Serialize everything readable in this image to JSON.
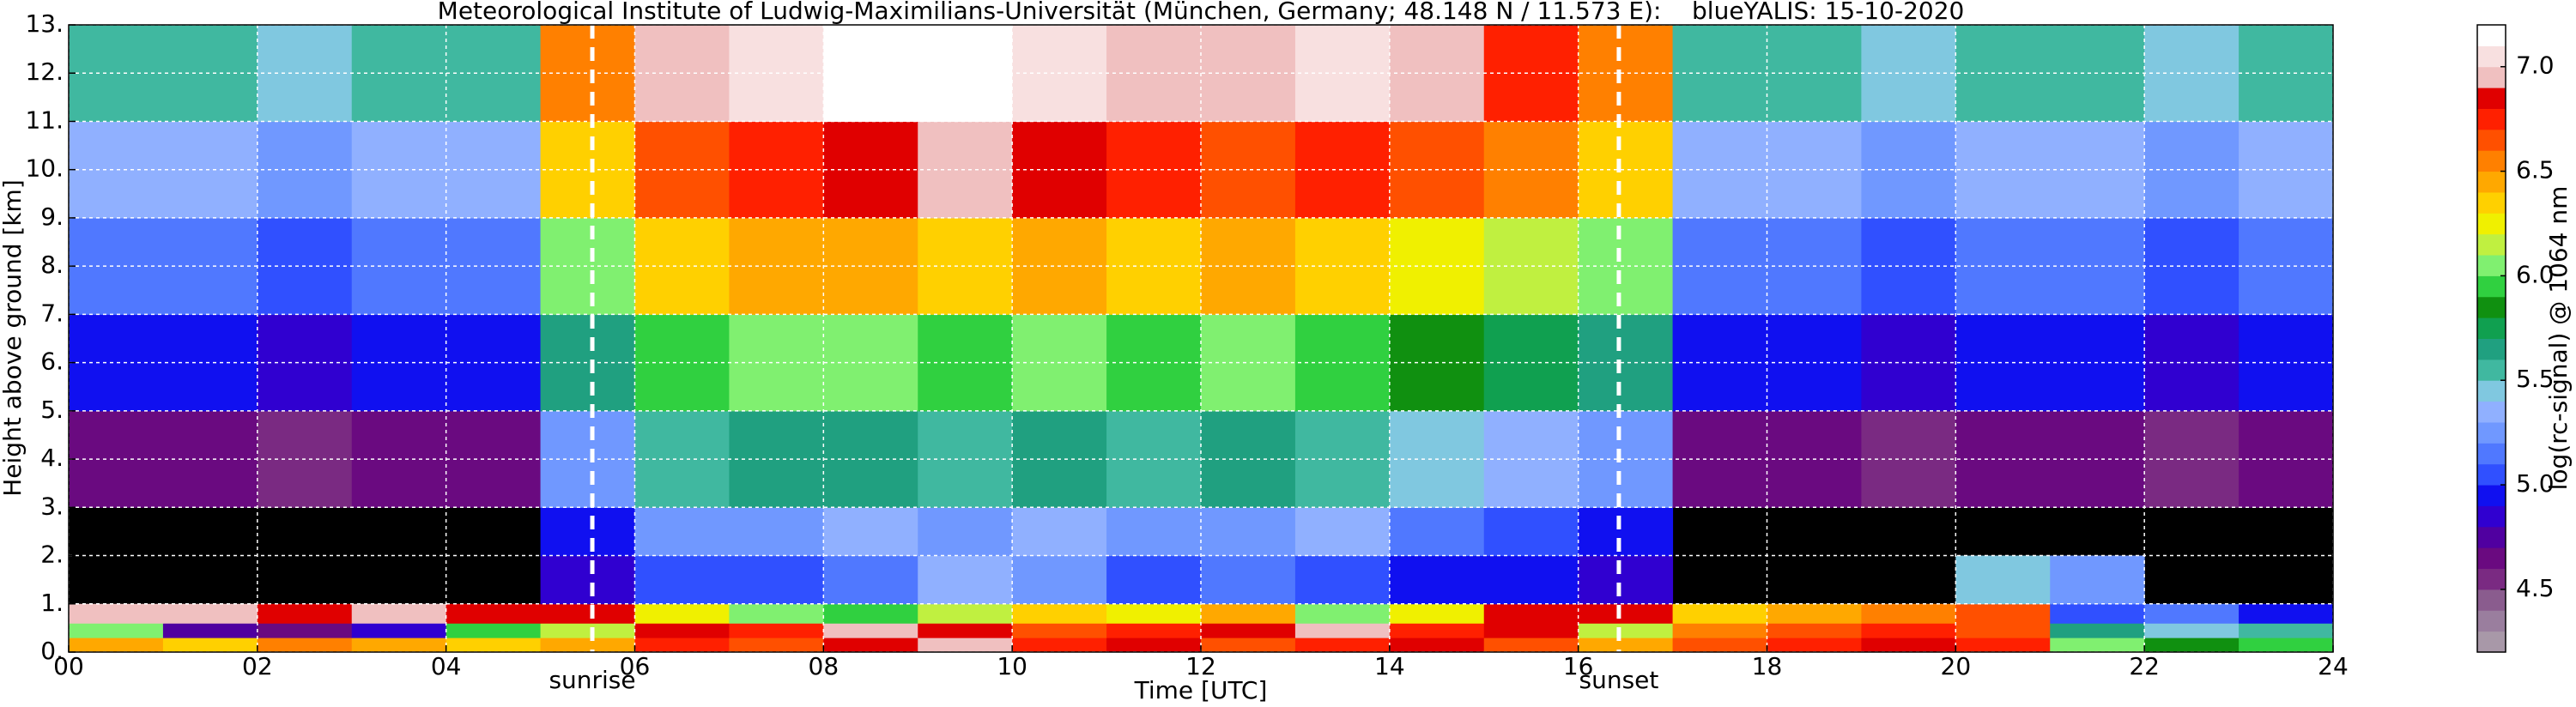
{
  "chart_data": {
    "type": "heatmap",
    "title": "Meteorological Institute of Ludwig-Maximilians-Universität (München, Germany; 48.148 N / 11.573 E):    blueYALIS: 15-10-2020",
    "x_label": "Time [UTC]",
    "y_label": "Height above ground [km]",
    "xbins": [
      0,
      1,
      2,
      3,
      4,
      5,
      6,
      7,
      8,
      9,
      10,
      11,
      12,
      13,
      14,
      15,
      16,
      17,
      18,
      19,
      20,
      21,
      22,
      23,
      24
    ],
    "ybins": [
      0,
      0.3,
      0.6,
      1,
      2,
      3,
      5,
      7,
      9,
      11,
      13
    ],
    "z": [
      [
        6.4,
        6.3,
        6.5,
        6.4,
        6.3,
        6.4,
        6.7,
        6.6,
        6.8,
        6.9,
        6.7,
        6.8,
        6.6,
        6.7,
        6.8,
        6.6,
        6.4,
        6.6,
        6.7,
        6.8,
        6.7,
        6.0,
        5.8,
        5.9
      ],
      [
        6.0,
        4.7,
        4.6,
        4.8,
        5.9,
        6.1,
        6.8,
        6.7,
        6.9,
        6.8,
        6.6,
        6.7,
        6.8,
        6.9,
        6.7,
        6.8,
        6.1,
        6.5,
        6.6,
        6.7,
        6.6,
        5.6,
        5.4,
        5.5
      ],
      [
        6.9,
        6.9,
        6.8,
        6.9,
        6.8,
        6.8,
        6.2,
        6.0,
        5.9,
        6.1,
        6.3,
        6.2,
        6.4,
        6.0,
        6.2,
        6.8,
        6.8,
        6.3,
        6.4,
        6.5,
        6.6,
        5.0,
        5.1,
        4.9
      ],
      [
        null,
        null,
        null,
        null,
        null,
        4.8,
        5.0,
        5.0,
        5.1,
        5.3,
        5.2,
        5.0,
        5.1,
        5.0,
        4.9,
        4.9,
        4.8,
        null,
        null,
        null,
        5.4,
        5.2,
        null,
        null
      ],
      [
        null,
        null,
        null,
        null,
        null,
        4.9,
        5.2,
        5.2,
        5.3,
        5.2,
        5.3,
        5.2,
        5.2,
        5.3,
        5.1,
        5.0,
        4.9,
        null,
        null,
        null,
        null,
        null,
        null,
        null
      ],
      [
        4.6,
        4.6,
        4.5,
        4.6,
        4.6,
        5.2,
        5.5,
        5.6,
        5.6,
        5.5,
        5.6,
        5.5,
        5.6,
        5.5,
        5.4,
        5.3,
        5.2,
        4.6,
        4.6,
        4.5,
        4.6,
        4.6,
        4.5,
        4.6
      ],
      [
        4.9,
        4.9,
        4.8,
        4.9,
        4.9,
        5.6,
        5.9,
        6.0,
        6.0,
        5.9,
        6.0,
        5.9,
        6.0,
        5.9,
        5.8,
        5.7,
        5.6,
        4.9,
        4.9,
        4.8,
        4.9,
        4.9,
        4.8,
        4.9
      ],
      [
        5.1,
        5.1,
        5.0,
        5.1,
        5.1,
        6.0,
        6.3,
        6.4,
        6.4,
        6.3,
        6.4,
        6.3,
        6.4,
        6.3,
        6.2,
        6.1,
        6.0,
        5.1,
        5.1,
        5.0,
        5.1,
        5.1,
        5.0,
        5.1
      ],
      [
        5.3,
        5.3,
        5.2,
        5.3,
        5.3,
        6.3,
        6.6,
        6.7,
        6.8,
        6.9,
        6.8,
        6.7,
        6.6,
        6.7,
        6.6,
        6.5,
        6.3,
        5.3,
        5.3,
        5.2,
        5.3,
        5.3,
        5.2,
        5.3
      ],
      [
        5.5,
        5.5,
        5.4,
        5.5,
        5.5,
        6.5,
        6.9,
        7.0,
        7.1,
        7.1,
        7.0,
        6.9,
        6.9,
        7.0,
        6.9,
        6.7,
        6.5,
        5.5,
        5.5,
        5.4,
        5.5,
        5.5,
        5.4,
        5.5
      ]
    ],
    "xlim": [
      0,
      24
    ],
    "ylim": [
      0,
      13
    ],
    "xticks": [
      {
        "value": 0,
        "label": "00"
      },
      {
        "value": 2,
        "label": "02"
      },
      {
        "value": 4,
        "label": "04"
      },
      {
        "value": 6,
        "label": "06"
      },
      {
        "value": 8,
        "label": "08"
      },
      {
        "value": 10,
        "label": "10"
      },
      {
        "value": 12,
        "label": "12"
      },
      {
        "value": 14,
        "label": "14"
      },
      {
        "value": 16,
        "label": "16"
      },
      {
        "value": 18,
        "label": "18"
      },
      {
        "value": 20,
        "label": "20"
      },
      {
        "value": 22,
        "label": "22"
      },
      {
        "value": 24,
        "label": "24"
      }
    ],
    "yticks": [
      {
        "value": 0,
        "label": "0."
      },
      {
        "value": 1,
        "label": "1."
      },
      {
        "value": 2,
        "label": "2."
      },
      {
        "value": 3,
        "label": "3."
      },
      {
        "value": 4,
        "label": "4."
      },
      {
        "value": 5,
        "label": "5."
      },
      {
        "value": 6,
        "label": "6."
      },
      {
        "value": 7,
        "label": "7."
      },
      {
        "value": 8,
        "label": "8."
      },
      {
        "value": 9,
        "label": "9."
      },
      {
        "value": 10,
        "label": "10."
      },
      {
        "value": 11,
        "label": "11."
      },
      {
        "value": 12,
        "label": "12."
      },
      {
        "value": 13,
        "label": "13."
      }
    ],
    "grid": true,
    "annotations": [
      {
        "x": 5.55,
        "text": "sunrise"
      },
      {
        "x": 16.43,
        "text": "sunset"
      }
    ],
    "colorbar": {
      "label": "log(rc-signal) @ 1064 nm",
      "clim": [
        4.2,
        7.2
      ],
      "ticks": [
        4.5,
        {
          "value": 5,
          "label": "5.0"
        },
        5.5,
        {
          "value": 6,
          "label": "6.0"
        },
        6.5,
        {
          "value": 7,
          "label": "7.0"
        }
      ],
      "colors": [
        "#a898a8",
        "#9a7e9e",
        "#8a5c8e",
        "#7a2a82",
        "#6a0a80",
        "#5000a0",
        "#3000d0",
        "#1010f0",
        "#3050ff",
        "#5078ff",
        "#7098ff",
        "#90b0ff",
        "#80c8e0",
        "#40b8a0",
        "#20a080",
        "#10a050",
        "#109010",
        "#30d040",
        "#80f070",
        "#c0f040",
        "#f0f000",
        "#ffd000",
        "#ffa800",
        "#ff8000",
        "#ff5000",
        "#ff2000",
        "#e00000",
        "#f0c0c0",
        "#f8e0e0",
        "#ffffff"
      ]
    }
  }
}
